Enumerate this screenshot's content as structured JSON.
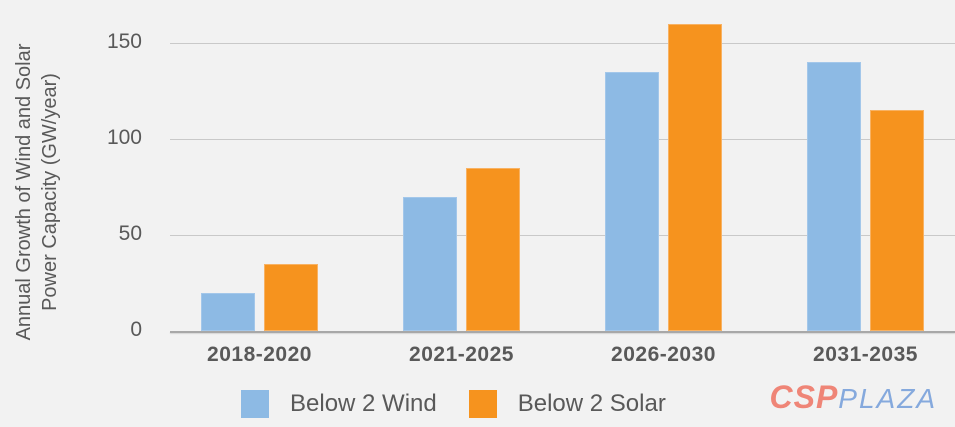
{
  "chart_data": {
    "type": "bar",
    "title": "",
    "categories": [
      "2018-2020",
      "2021-2025",
      "2026-2030",
      "2031-2035"
    ],
    "series": [
      {
        "name": "Below 2 Wind",
        "color": "#8dbae4",
        "values": [
          20,
          70,
          135,
          140
        ]
      },
      {
        "name": "Below 2 Solar",
        "color": "#f6931e",
        "values": [
          35,
          85,
          160,
          115
        ]
      }
    ],
    "ylabel_line1": "Annual Growth of Wind and Solar",
    "ylabel_line2": "Power Capacity (GW/year)",
    "xlabel": "",
    "yticks": [
      0,
      50,
      100,
      150
    ],
    "ylim": [
      0,
      172
    ],
    "grid": true,
    "legend_position": "bottom",
    "background_color": "#f2f2f2",
    "gridline_color": "#c9c9c9",
    "text_color": "#595959"
  },
  "watermark": {
    "csp": "CSP",
    "plaza": "PLAZA",
    "csp_color": "#ef8577",
    "plaza_color": "#85a9dd"
  }
}
